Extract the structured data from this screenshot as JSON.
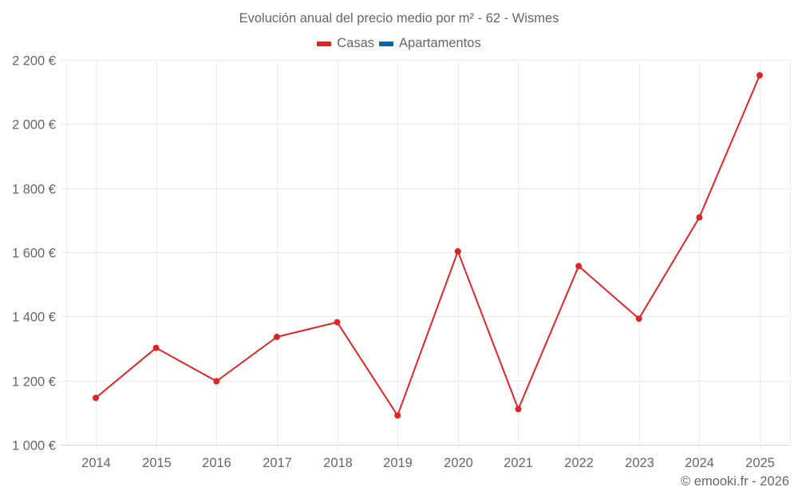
{
  "title": "Evolución anual del precio medio por m² - 62 - Wismes",
  "legend": [
    {
      "label": "Casas",
      "color": "#dc2626"
    },
    {
      "label": "Apartamentos",
      "color": "#0a66a0"
    }
  ],
  "credit": "© emooki.fr - 2026",
  "chart_data": {
    "type": "line",
    "title": "Evolución anual del precio medio por m² - 62 - Wismes",
    "xlabel": "",
    "ylabel": "",
    "categories": [
      "2014",
      "2015",
      "2016",
      "2017",
      "2018",
      "2019",
      "2020",
      "2021",
      "2022",
      "2023",
      "2024",
      "2025"
    ],
    "series": [
      {
        "name": "Casas",
        "color": "#dc2626",
        "values": [
          1146,
          1302,
          1198,
          1336,
          1382,
          1091,
          1603,
          1111,
          1557,
          1393,
          1709,
          2152
        ]
      },
      {
        "name": "Apartamentos",
        "color": "#0a66a0",
        "values": []
      }
    ],
    "ylim": [
      1000,
      2200
    ],
    "yticks": [
      1000,
      1200,
      1400,
      1600,
      1800,
      2000,
      2200
    ],
    "ytick_labels": [
      "1 000 €",
      "1 200 €",
      "1 400 €",
      "1 600 €",
      "1 800 €",
      "2 000 €",
      "2 200 €"
    ],
    "grid": true,
    "legend_position": "top"
  }
}
